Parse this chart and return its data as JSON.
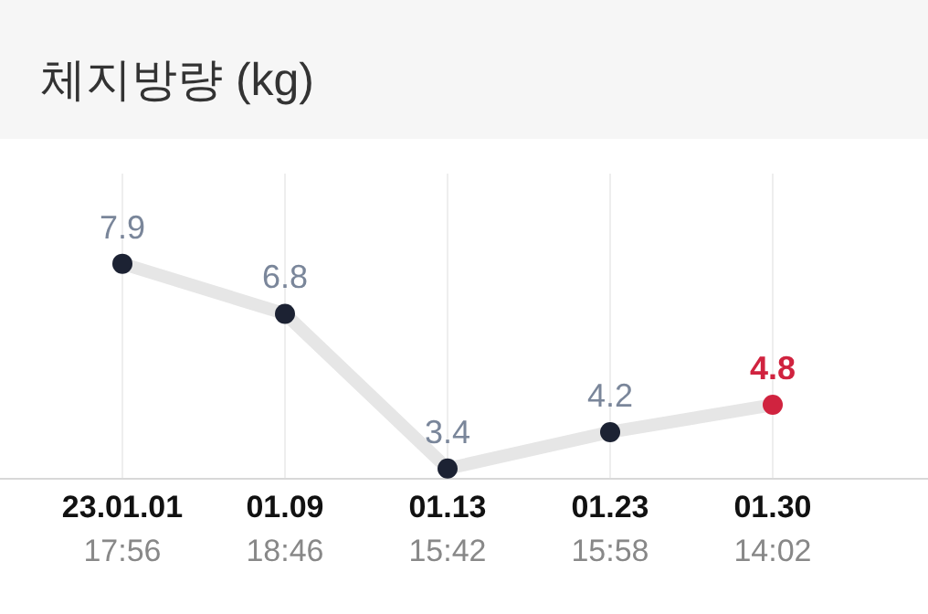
{
  "chart_data": {
    "type": "line",
    "title": "체지방량 (kg)",
    "categories": [
      "23.01.01\n17:56",
      "01.09\n18:46",
      "01.13\n15:42",
      "01.23\n15:58",
      "01.30\n14:02"
    ],
    "series": [
      {
        "color": "#e6e6e6",
        "colors": [
          "#1c2233",
          "#1c2233",
          "#1c2233",
          "#1c2233",
          "#d0233f"
        ],
        "values": [
          7.9,
          6.8,
          3.4,
          4.2,
          4.8
        ]
      }
    ],
    "data_labels": true,
    "grid": "x",
    "marker": "circle",
    "line_style": "solid"
  }
}
